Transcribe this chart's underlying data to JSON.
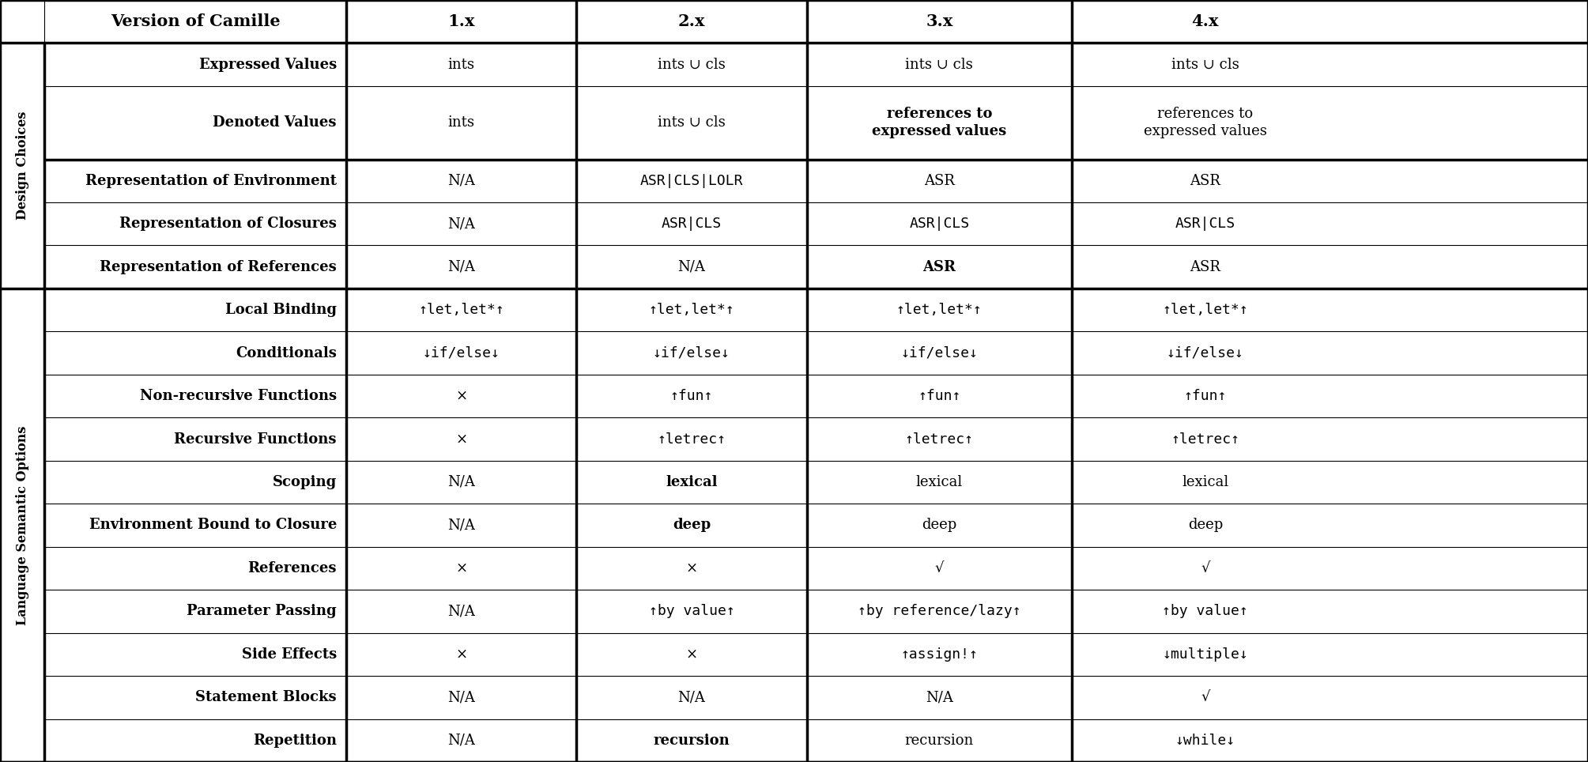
{
  "col_headers": [
    "Version of Camille",
    "1.x",
    "2.x",
    "3.x",
    "4.x"
  ],
  "section1_label": "Design Choices",
  "section2_label": "Language Semantic Options",
  "design_labels": [
    "Expressed Values",
    "Denoted Values",
    "Representation of Environment",
    "Representation of Closures",
    "Representation of References"
  ],
  "design_values": [
    [
      "ints",
      "ints ∪ cls",
      "ints ∪ cls",
      "ints ∪ cls"
    ],
    [
      "ints",
      "ints ∪ cls",
      "references to\nexpressed values",
      "references to\nexpressed values"
    ],
    [
      "N/A",
      "ASR|CLS|LOLR",
      "ASR",
      "ASR"
    ],
    [
      "N/A",
      "ASR|CLS",
      "ASR|CLS",
      "ASR|CLS"
    ],
    [
      "N/A",
      "N/A",
      "ASR",
      "ASR"
    ]
  ],
  "design_bold_vals": [
    [
      false,
      false,
      false,
      false
    ],
    [
      false,
      false,
      true,
      false
    ],
    [
      false,
      false,
      false,
      false
    ],
    [
      false,
      false,
      false,
      false
    ],
    [
      false,
      false,
      true,
      false
    ]
  ],
  "design_mono_vals": [
    [
      false,
      false,
      false,
      false
    ],
    [
      false,
      false,
      false,
      false
    ],
    [
      false,
      true,
      false,
      false
    ],
    [
      false,
      true,
      true,
      true
    ],
    [
      false,
      false,
      false,
      false
    ]
  ],
  "lang_labels": [
    "Local Binding",
    "Conditionals",
    "Non-recursive Functions",
    "Recursive Functions",
    "Scoping",
    "Environment Bound to Closure",
    "References",
    "Parameter Passing",
    "Side Effects",
    "Statement Blocks",
    "Repetition"
  ],
  "lang_values": [
    [
      "↑let,let*↑",
      "↑let,let*↑",
      "↑let,let*↑",
      "↑let,let*↑"
    ],
    [
      "↓if/else↓",
      "↓if/else↓",
      "↓if/else↓",
      "↓if/else↓"
    ],
    [
      "×",
      "↑fun↑",
      "↑fun↑",
      "↑fun↑"
    ],
    [
      "×",
      "↑letrec↑",
      "↑letrec↑",
      "↑letrec↑"
    ],
    [
      "N/A",
      "lexical",
      "lexical",
      "lexical"
    ],
    [
      "N/A",
      "deep",
      "deep",
      "deep"
    ],
    [
      "×",
      "×",
      "√",
      "√"
    ],
    [
      "N/A",
      "↑by value↑",
      "↑by reference/lazy↑",
      "↑by value↑"
    ],
    [
      "×",
      "×",
      "↑assign!↑",
      "↓multiple↓"
    ],
    [
      "N/A",
      "N/A",
      "N/A",
      "√"
    ],
    [
      "N/A",
      "recursion",
      "recursion",
      "↓while↓"
    ]
  ],
  "lang_bold_vals": [
    [
      false,
      false,
      false,
      false
    ],
    [
      false,
      false,
      false,
      false
    ],
    [
      false,
      false,
      false,
      false
    ],
    [
      false,
      false,
      false,
      false
    ],
    [
      false,
      true,
      false,
      false
    ],
    [
      false,
      true,
      false,
      false
    ],
    [
      false,
      false,
      false,
      false
    ],
    [
      false,
      false,
      false,
      false
    ],
    [
      false,
      false,
      false,
      false
    ],
    [
      false,
      false,
      false,
      false
    ],
    [
      false,
      true,
      false,
      false
    ]
  ],
  "lang_mono_vals": [
    [
      true,
      true,
      true,
      true
    ],
    [
      true,
      true,
      true,
      true
    ],
    [
      false,
      true,
      true,
      true
    ],
    [
      false,
      true,
      true,
      true
    ],
    [
      false,
      false,
      false,
      false
    ],
    [
      false,
      false,
      false,
      false
    ],
    [
      false,
      false,
      false,
      false
    ],
    [
      false,
      true,
      true,
      true
    ],
    [
      false,
      false,
      true,
      true
    ],
    [
      false,
      false,
      false,
      false
    ],
    [
      false,
      false,
      false,
      true
    ]
  ],
  "thick": 2.5,
  "thin": 0.8,
  "fs_header": 15,
  "fs_cell": 13,
  "fs_row_label": 13,
  "fs_section": 11.5
}
